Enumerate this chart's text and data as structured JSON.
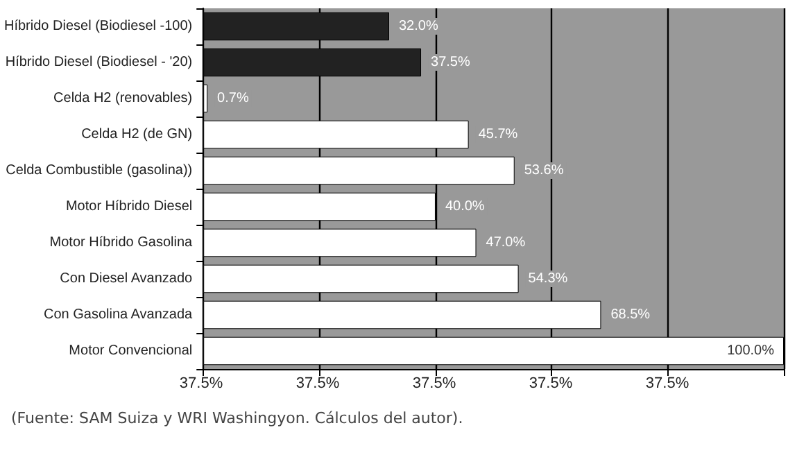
{
  "chart_data": {
    "type": "bar",
    "orientation": "horizontal",
    "categories": [
      "Híbrido Diesel (Biodiesel -100)",
      "Híbrido Diesel (Biodiesel - '20)",
      "Celda H2 (renovables)",
      "Celda H2 (de GN)",
      "Celda Combustible (gasolina))",
      "Motor Híbrido Diesel",
      "Motor Híbrido Gasolina",
      "Con Diesel Avanzado",
      "Con Gasolina Avanzada",
      "Motor Convencional"
    ],
    "values": [
      32.0,
      37.5,
      0.7,
      45.7,
      53.6,
      40.0,
      47.0,
      54.3,
      68.5,
      100.0
    ],
    "colors": [
      "#222222",
      "#222222",
      "#ffffff",
      "#ffffff",
      "#ffffff",
      "#ffffff",
      "#ffffff",
      "#ffffff",
      "#ffffff",
      "#ffffff"
    ],
    "value_labels": [
      "32.0%",
      "37.5%",
      "0.7%",
      "45.7%",
      "53.6%",
      "40.0%",
      "47.0%",
      "54.3%",
      "68.5%",
      "100.0%"
    ],
    "grid": "x",
    "annotations": [
      "37.5%",
      "37.5%",
      "37.5%",
      "37.5%",
      "37.5%",
      "(Fuente: SAM Suiza y WRI Washingyon. Cálculos del autor)."
    ]
  }
}
